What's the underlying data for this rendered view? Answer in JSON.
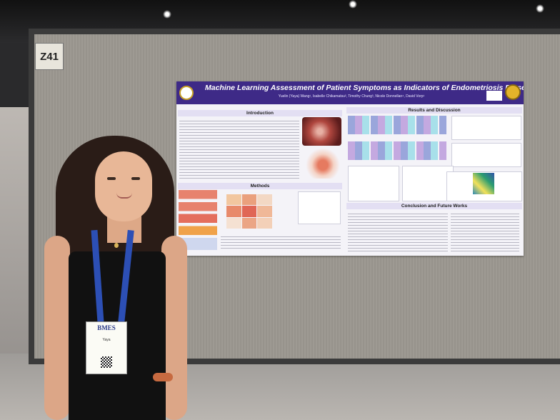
{
  "booth": {
    "label": "Z41"
  },
  "poster": {
    "title": "Machine Learning Assessment of Patient Symptoms as Indicators of Endometriosis Presence and Severity",
    "authors": "Yuelin (Yaya) Wang¹, Isabelle Chikamatsu², Timothy Chung³, Nicole Donnellan⁴, David Vorp¹",
    "sections": {
      "introduction": "Introduction",
      "methods": "Methods",
      "results": "Results and Discussion",
      "conclusion": "Conclusion and Future Works"
    }
  },
  "badge": {
    "organization": "BMES",
    "name": "Yaya"
  },
  "colors": {
    "poster_header": "#3e2a87",
    "lanyard": "#2c4fb5",
    "board": "#9c9891"
  }
}
